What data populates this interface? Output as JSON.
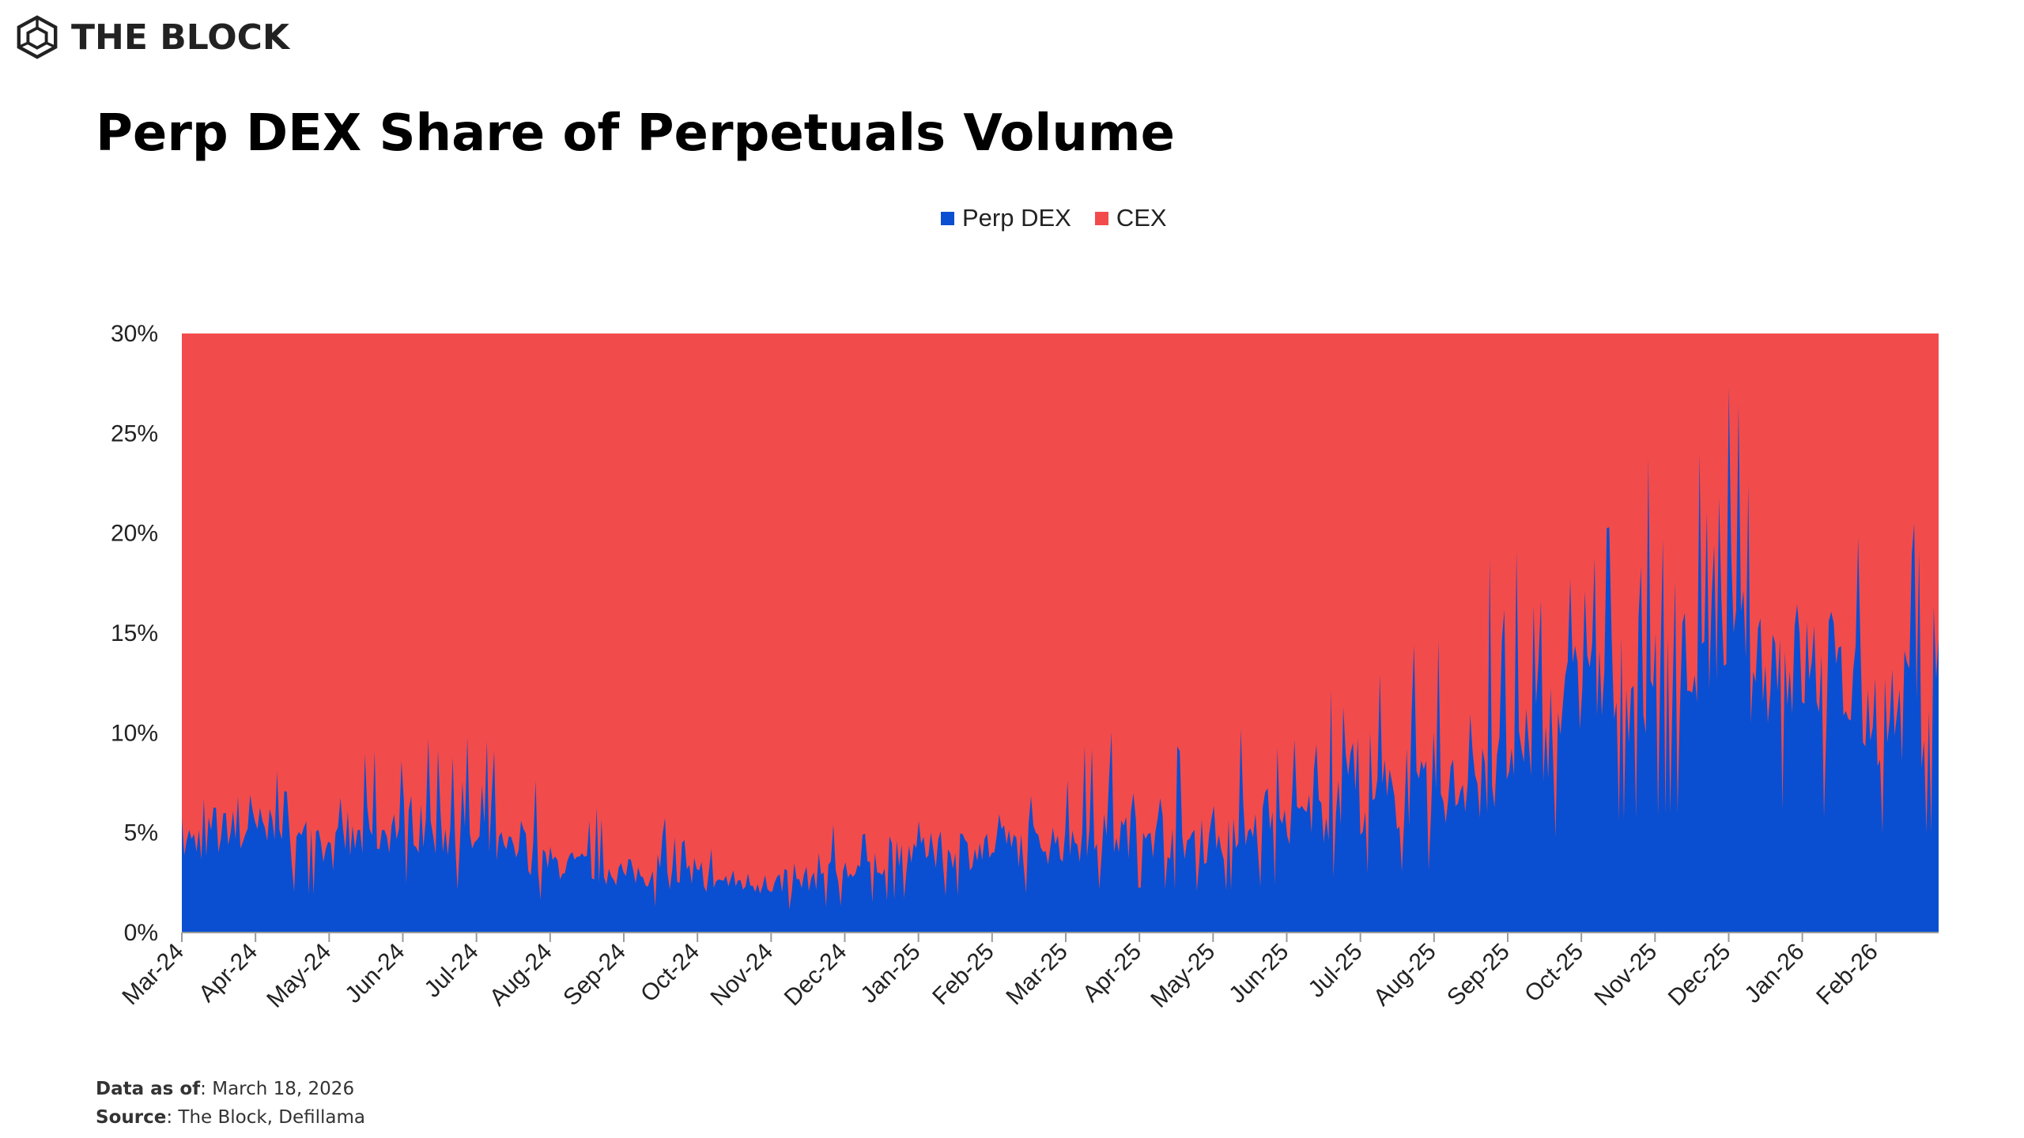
{
  "brand": {
    "name": "THE BLOCK",
    "icon": "cube-logo-icon"
  },
  "title": "Perp DEX Share of Perpetuals Volume",
  "legend": [
    {
      "label": "Perp DEX",
      "color": "#0a4fd1"
    },
    {
      "label": "CEX",
      "color": "#f24b4b"
    }
  ],
  "footer": {
    "data_as_of_label": "Data as of",
    "data_as_of_value": ": March 18, 2026",
    "source_label": "Source",
    "source_value": ": The Block, Defillama"
  },
  "chart_data": {
    "type": "area",
    "stacked": true,
    "title": "Perp DEX Share of Perpetuals Volume",
    "xlabel": "",
    "ylabel": "",
    "ylim": [
      0,
      30
    ],
    "y_ticks": [
      "0%",
      "5%",
      "10%",
      "15%",
      "20%",
      "25%",
      "30%"
    ],
    "y_tick_values": [
      0,
      5,
      10,
      15,
      20,
      25,
      30
    ],
    "x_tick_labels": [
      "Mar-24",
      "Apr-24",
      "May-24",
      "Jun-24",
      "Jul-24",
      "Aug-24",
      "Sep-24",
      "Oct-24",
      "Nov-24",
      "Dec-24",
      "Jan-25",
      "Feb-25",
      "Mar-25",
      "Apr-25",
      "May-25",
      "Jun-25",
      "Jul-25",
      "Aug-25",
      "Sep-25",
      "Oct-25",
      "Nov-25",
      "Dec-25",
      "Jan-26",
      "Feb-26"
    ],
    "grid": false,
    "legend_position": "top-center",
    "series": [
      {
        "name": "Perp DEX",
        "color": "#0a4fd1",
        "x": [
          "Mar-24",
          "Apr-24",
          "May-24",
          "Jun-24",
          "Jul-24",
          "Aug-24",
          "Sep-24",
          "Oct-24",
          "Nov-24",
          "Dec-24",
          "Jan-25",
          "Feb-25",
          "Mar-25",
          "Apr-25",
          "May-25",
          "Jun-25",
          "Jul-25",
          "Aug-25",
          "Sep-25",
          "Oct-25",
          "Nov-25",
          "Dec-25",
          "Jan-26",
          "Feb-26"
        ],
        "values": [
          4.5,
          5.2,
          4.0,
          5.5,
          4.5,
          3.5,
          3.0,
          2.7,
          2.4,
          3.0,
          4.0,
          4.2,
          4.6,
          5.0,
          4.5,
          5.5,
          6.5,
          7.0,
          8.0,
          12.0,
          13.0,
          14.0,
          13.5,
          11.0
        ],
        "peaks": [
          8.0,
          9.5,
          8.0,
          11.0,
          10.0,
          7.5,
          7.5,
          6.0,
          3.5,
          6.2,
          5.8,
          5.5,
          11.5,
          10.0,
          9.0,
          13.0,
          13.0,
          15.0,
          23.0,
          25.0,
          27.5,
          28.0,
          17.0,
          21.0
        ]
      },
      {
        "name": "CEX",
        "color": "#f24b4b",
        "values_note": "remainder to 100%"
      }
    ]
  }
}
